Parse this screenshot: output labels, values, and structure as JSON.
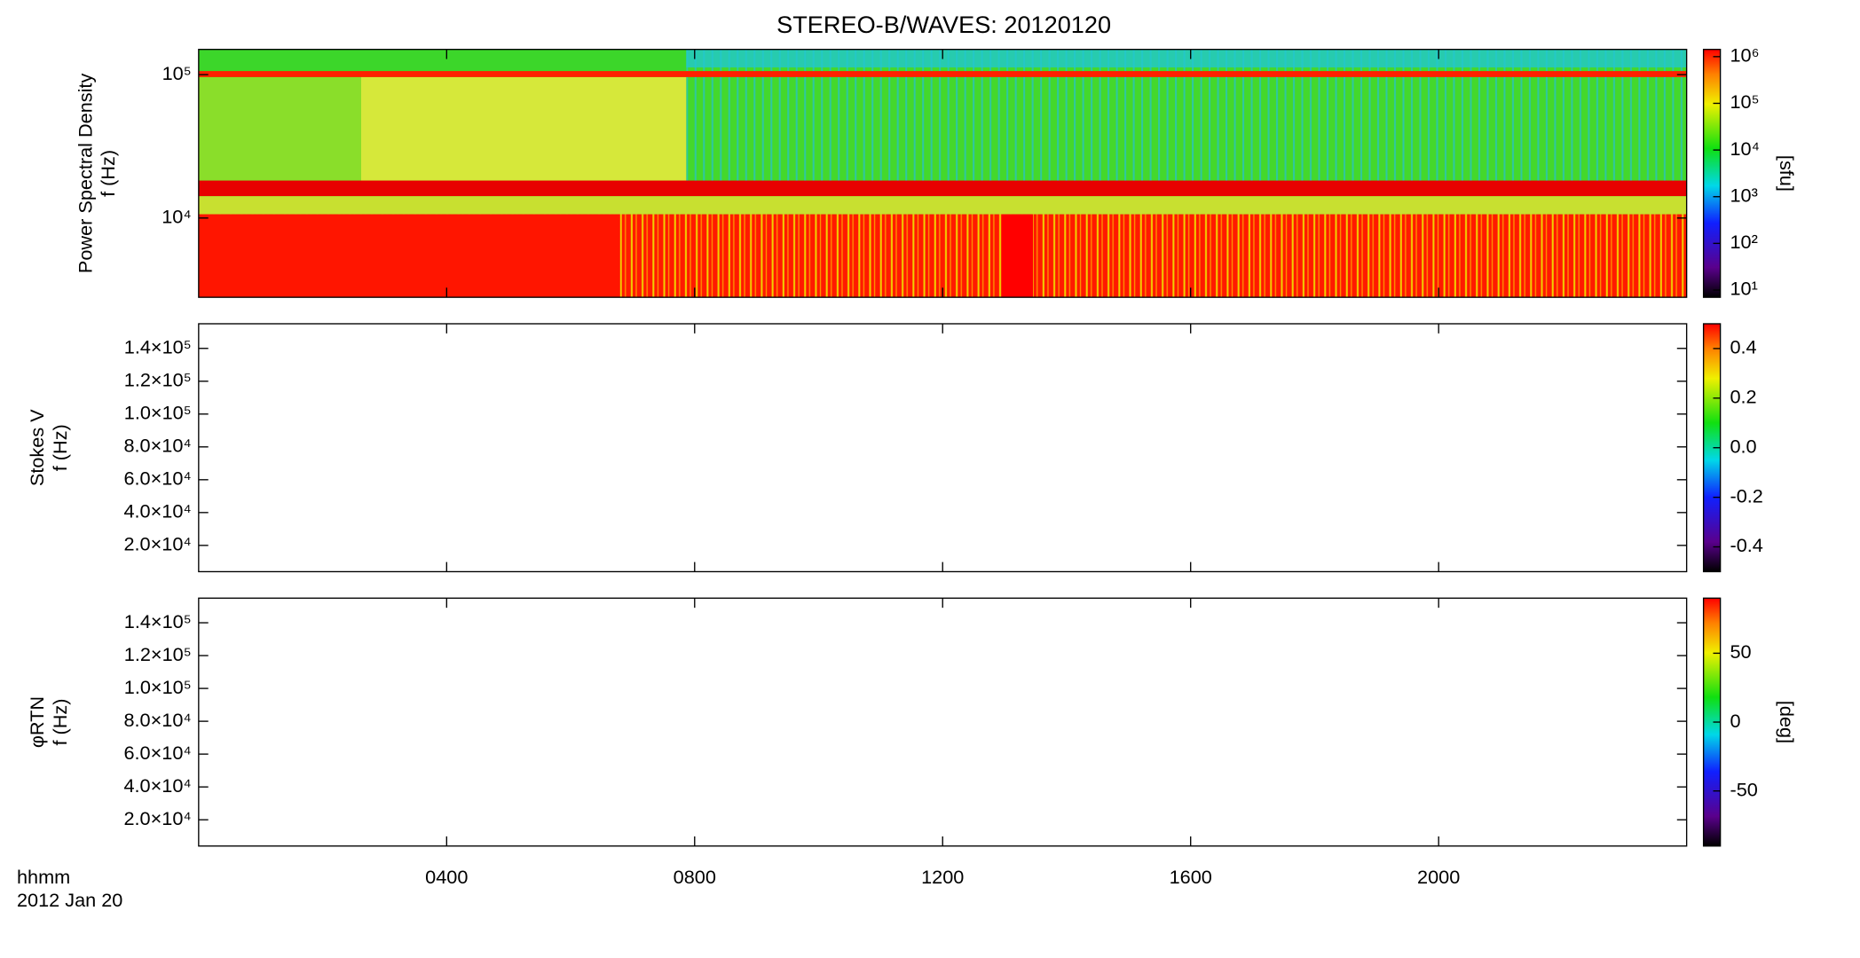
{
  "chart_data": [
    {
      "type": "heatmap",
      "title": "STEREO-B/WAVES: 20120120",
      "ylabel": [
        "Power Spectral Density",
        "f (Hz)"
      ],
      "ylog": true,
      "ylim": [
        2800,
        150000
      ],
      "yticks": [
        {
          "value": 10000,
          "label": "10⁴"
        },
        {
          "value": 100000,
          "label": "10⁵"
        }
      ],
      "colorbar": {
        "log": true,
        "lim": [
          7,
          1430000
        ],
        "label": "[sfu]",
        "ticks": [
          {
            "value": 10,
            "label": "10¹"
          },
          {
            "value": 100,
            "label": "10²"
          },
          {
            "value": 1000,
            "label": "10³"
          },
          {
            "value": 10000,
            "label": "10⁴"
          },
          {
            "value": 100000,
            "label": "10⁵"
          },
          {
            "value": 1000000,
            "label": "10⁶"
          }
        ]
      }
    },
    {
      "type": "heatmap",
      "ylabel": [
        "Stokes V",
        "f (Hz)"
      ],
      "ylog": false,
      "ylim": [
        4000,
        155000
      ],
      "yticks": [
        {
          "value": 20000,
          "label": "2.0×10⁴"
        },
        {
          "value": 40000,
          "label": "4.0×10⁴"
        },
        {
          "value": 60000,
          "label": "6.0×10⁴"
        },
        {
          "value": 80000,
          "label": "8.0×10⁴"
        },
        {
          "value": 100000,
          "label": "1.0×10⁵"
        },
        {
          "value": 120000,
          "label": "1.2×10⁵"
        },
        {
          "value": 140000,
          "label": "1.4×10⁵"
        }
      ],
      "colorbar": {
        "log": false,
        "lim": [
          -0.5,
          0.5
        ],
        "ticks": [
          -0.4,
          -0.2,
          {
            "value": 0,
            "label": "0.0"
          },
          0.2,
          0.4
        ]
      }
    },
    {
      "type": "heatmap",
      "ylabel": [
        "φRTN",
        "f (Hz)"
      ],
      "ylog": false,
      "ylim": [
        4000,
        155000
      ],
      "yticks": [
        {
          "value": 20000,
          "label": "2.0×10⁴"
        },
        {
          "value": 40000,
          "label": "4.0×10⁴"
        },
        {
          "value": 60000,
          "label": "6.0×10⁴"
        },
        {
          "value": 80000,
          "label": "8.0×10⁴"
        },
        {
          "value": 100000,
          "label": "1.0×10⁵"
        },
        {
          "value": 120000,
          "label": "1.2×10⁵"
        },
        {
          "value": 140000,
          "label": "1.4×10⁵"
        }
      ],
      "colorbar": {
        "log": false,
        "lim": [
          -90,
          90
        ],
        "label": "[deg]",
        "ticks": [
          -50,
          0,
          50
        ]
      },
      "xlabel": "hhmm",
      "date": "2012 Jan 20",
      "xlim": [
        0,
        24
      ],
      "xticks": [
        {
          "value": 4,
          "label": "0400"
        },
        {
          "value": 8,
          "label": "0800"
        },
        {
          "value": 12,
          "label": "1200"
        },
        {
          "value": 16,
          "label": "1600"
        },
        {
          "value": 20,
          "label": "2000"
        }
      ]
    }
  ]
}
